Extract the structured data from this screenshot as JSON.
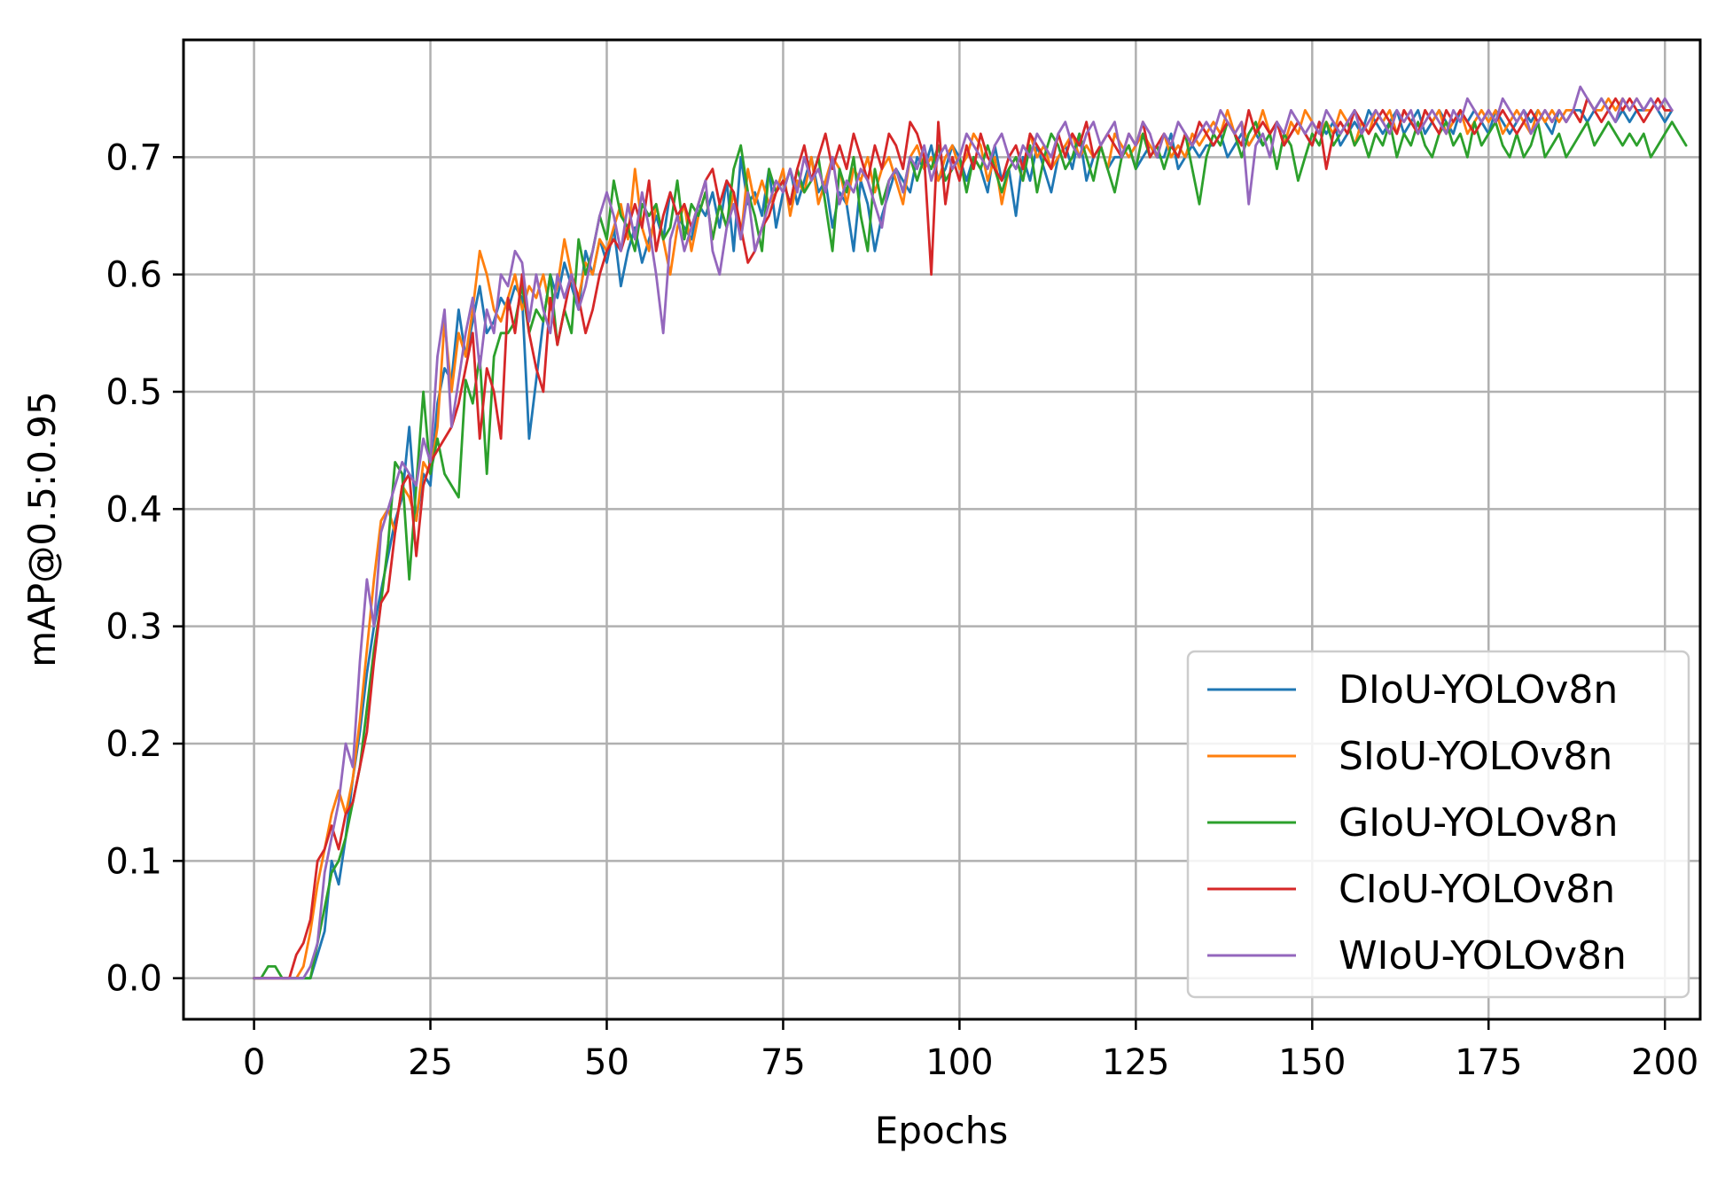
{
  "chart_data": {
    "type": "line",
    "title": "",
    "xlabel": "Epochs",
    "ylabel": "mAP@0.5:0.95",
    "xlim": [
      -10,
      205
    ],
    "ylim": [
      -0.035,
      0.8
    ],
    "xticks": [
      0,
      25,
      50,
      75,
      100,
      125,
      150,
      175,
      200
    ],
    "yticks": [
      0.0,
      0.1,
      0.2,
      0.3,
      0.4,
      0.5,
      0.6,
      0.7
    ],
    "ytick_labels": [
      "0.0",
      "0.1",
      "0.2",
      "0.3",
      "0.4",
      "0.5",
      "0.6",
      "0.7"
    ],
    "grid": true,
    "legend": "lower-right",
    "x": {
      "start": 0,
      "end": 199,
      "step": 1
    },
    "series": [
      {
        "name": "DIoU-YOLOv8n",
        "color": "#1f77b4",
        "values": [
          0.0,
          0.0,
          0.0,
          0.0,
          0.0,
          0.0,
          0.0,
          0.0,
          0.0,
          0.02,
          0.04,
          0.1,
          0.08,
          0.12,
          0.17,
          0.21,
          0.26,
          0.3,
          0.33,
          0.36,
          0.39,
          0.41,
          0.47,
          0.39,
          0.43,
          0.42,
          0.49,
          0.52,
          0.51,
          0.57,
          0.53,
          0.56,
          0.59,
          0.55,
          0.56,
          0.58,
          0.57,
          0.59,
          0.58,
          0.46,
          0.51,
          0.56,
          0.6,
          0.58,
          0.61,
          0.59,
          0.57,
          0.62,
          0.6,
          0.63,
          0.61,
          0.64,
          0.59,
          0.62,
          0.64,
          0.61,
          0.63,
          0.65,
          0.63,
          0.67,
          0.65,
          0.64,
          0.63,
          0.66,
          0.65,
          0.67,
          0.64,
          0.68,
          0.62,
          0.7,
          0.66,
          0.67,
          0.65,
          0.69,
          0.64,
          0.67,
          0.69,
          0.66,
          0.68,
          0.7,
          0.67,
          0.68,
          0.64,
          0.67,
          0.66,
          0.62,
          0.68,
          0.66,
          0.62,
          0.65,
          0.67,
          0.69,
          0.68,
          0.67,
          0.7,
          0.69,
          0.71,
          0.68,
          0.69,
          0.71,
          0.7,
          0.68,
          0.7,
          0.69,
          0.67,
          0.71,
          0.68,
          0.69,
          0.65,
          0.7,
          0.68,
          0.71,
          0.69,
          0.67,
          0.7,
          0.71,
          0.69,
          0.72,
          0.68,
          0.7,
          0.71,
          0.69,
          0.7,
          0.7,
          0.71,
          0.69,
          0.7,
          0.71,
          0.7,
          0.7,
          0.72,
          0.69,
          0.7,
          0.71,
          0.7,
          0.71,
          0.71,
          0.72,
          0.7,
          0.71,
          0.72,
          0.71,
          0.72,
          0.71,
          0.72,
          0.73,
          0.71,
          0.72,
          0.73,
          0.72,
          0.71,
          0.73,
          0.72,
          0.73,
          0.71,
          0.72,
          0.73,
          0.72,
          0.74,
          0.73,
          0.72,
          0.73,
          0.74,
          0.72,
          0.73,
          0.74,
          0.72,
          0.73,
          0.74,
          0.73,
          0.72,
          0.74,
          0.73,
          0.74,
          0.73,
          0.72,
          0.74,
          0.73,
          0.72,
          0.73,
          0.74,
          0.73,
          0.74,
          0.73,
          0.72,
          0.74,
          0.73,
          0.74,
          0.74,
          0.73,
          0.74,
          0.75,
          0.74,
          0.73,
          0.74,
          0.73,
          0.74,
          0.74,
          0.75,
          0.74,
          0.73,
          0.74
        ]
      },
      {
        "name": "SIoU-YOLOv8n",
        "color": "#ff7f0e",
        "values": [
          0.0,
          0.0,
          0.0,
          0.0,
          0.0,
          0.0,
          0.0,
          0.01,
          0.04,
          0.08,
          0.11,
          0.14,
          0.16,
          0.14,
          0.17,
          0.22,
          0.28,
          0.34,
          0.39,
          0.4,
          0.38,
          0.42,
          0.41,
          0.39,
          0.44,
          0.43,
          0.47,
          0.56,
          0.5,
          0.55,
          0.53,
          0.57,
          0.62,
          0.6,
          0.57,
          0.56,
          0.58,
          0.6,
          0.57,
          0.59,
          0.58,
          0.6,
          0.57,
          0.59,
          0.63,
          0.6,
          0.58,
          0.61,
          0.6,
          0.63,
          0.62,
          0.64,
          0.66,
          0.63,
          0.69,
          0.64,
          0.62,
          0.66,
          0.63,
          0.6,
          0.64,
          0.66,
          0.62,
          0.65,
          0.67,
          0.63,
          0.66,
          0.64,
          0.67,
          0.63,
          0.69,
          0.66,
          0.68,
          0.66,
          0.67,
          0.69,
          0.65,
          0.68,
          0.67,
          0.7,
          0.66,
          0.68,
          0.7,
          0.69,
          0.66,
          0.69,
          0.68,
          0.7,
          0.67,
          0.69,
          0.7,
          0.68,
          0.66,
          0.7,
          0.71,
          0.69,
          0.7,
          0.68,
          0.7,
          0.71,
          0.69,
          0.7,
          0.72,
          0.71,
          0.68,
          0.7,
          0.66,
          0.69,
          0.7,
          0.68,
          0.72,
          0.7,
          0.71,
          0.69,
          0.7,
          0.71,
          0.72,
          0.7,
          0.71,
          0.7,
          0.71,
          0.69,
          0.72,
          0.71,
          0.7,
          0.71,
          0.72,
          0.71,
          0.7,
          0.72,
          0.7,
          0.71,
          0.7,
          0.72,
          0.71,
          0.72,
          0.73,
          0.72,
          0.74,
          0.72,
          0.73,
          0.71,
          0.72,
          0.74,
          0.72,
          0.73,
          0.71,
          0.73,
          0.72,
          0.74,
          0.73,
          0.72,
          0.73,
          0.72,
          0.74,
          0.73,
          0.71,
          0.73,
          0.72,
          0.74,
          0.73,
          0.74,
          0.72,
          0.74,
          0.73,
          0.72,
          0.74,
          0.73,
          0.74,
          0.72,
          0.73,
          0.74,
          0.72,
          0.73,
          0.74,
          0.73,
          0.74,
          0.72,
          0.73,
          0.74,
          0.73,
          0.72,
          0.74,
          0.73,
          0.74,
          0.73,
          0.74,
          0.74,
          0.73,
          0.75,
          0.74,
          0.74,
          0.75,
          0.74,
          0.75,
          0.74,
          0.75,
          0.74,
          0.74,
          0.75,
          0.74,
          0.74
        ]
      },
      {
        "name": "GIoU-YOLOv8n",
        "color": "#2ca02c",
        "values": [
          0.0,
          0.0,
          0.01,
          0.01,
          0.0,
          0.0,
          0.0,
          0.0,
          0.0,
          0.03,
          0.06,
          0.09,
          0.1,
          0.12,
          0.15,
          0.18,
          0.23,
          0.28,
          0.32,
          0.37,
          0.44,
          0.43,
          0.34,
          0.42,
          0.5,
          0.43,
          0.46,
          0.43,
          0.42,
          0.41,
          0.51,
          0.49,
          0.53,
          0.43,
          0.53,
          0.55,
          0.55,
          0.56,
          0.59,
          0.55,
          0.57,
          0.56,
          0.6,
          0.54,
          0.57,
          0.55,
          0.63,
          0.6,
          0.62,
          0.65,
          0.63,
          0.68,
          0.65,
          0.64,
          0.62,
          0.66,
          0.65,
          0.66,
          0.63,
          0.64,
          0.68,
          0.63,
          0.66,
          0.65,
          0.67,
          0.63,
          0.66,
          0.64,
          0.69,
          0.71,
          0.67,
          0.65,
          0.62,
          0.69,
          0.67,
          0.68,
          0.66,
          0.69,
          0.67,
          0.68,
          0.7,
          0.66,
          0.62,
          0.69,
          0.67,
          0.7,
          0.65,
          0.62,
          0.69,
          0.66,
          0.68,
          0.69,
          0.67,
          0.7,
          0.68,
          0.7,
          0.69,
          0.71,
          0.68,
          0.69,
          0.7,
          0.67,
          0.7,
          0.69,
          0.71,
          0.69,
          0.67,
          0.69,
          0.7,
          0.68,
          0.71,
          0.67,
          0.7,
          0.72,
          0.71,
          0.69,
          0.7,
          0.72,
          0.7,
          0.68,
          0.71,
          0.69,
          0.67,
          0.7,
          0.71,
          0.69,
          0.72,
          0.7,
          0.71,
          0.69,
          0.71,
          0.7,
          0.72,
          0.69,
          0.66,
          0.7,
          0.72,
          0.71,
          0.73,
          0.72,
          0.7,
          0.72,
          0.73,
          0.71,
          0.72,
          0.69,
          0.72,
          0.71,
          0.68,
          0.7,
          0.72,
          0.71,
          0.73,
          0.71,
          0.72,
          0.73,
          0.71,
          0.72,
          0.7,
          0.72,
          0.71,
          0.73,
          0.7,
          0.72,
          0.71,
          0.73,
          0.71,
          0.7,
          0.72,
          0.73,
          0.71,
          0.72,
          0.7,
          0.73,
          0.71,
          0.72,
          0.73,
          0.71,
          0.7,
          0.72,
          0.7,
          0.71,
          0.73,
          0.7,
          0.71,
          0.72,
          0.7,
          0.71,
          0.72,
          0.73,
          0.71,
          0.72,
          0.73,
          0.72,
          0.71,
          0.72,
          0.71,
          0.72,
          0.7,
          0.71,
          0.72,
          0.73,
          0.72,
          0.71
        ]
      },
      {
        "name": "CIoU-YOLOv8n",
        "color": "#d62728",
        "values": [
          0.0,
          0.0,
          0.0,
          0.0,
          0.0,
          0.0,
          0.02,
          0.03,
          0.05,
          0.1,
          0.11,
          0.13,
          0.11,
          0.14,
          0.15,
          0.18,
          0.21,
          0.27,
          0.32,
          0.33,
          0.38,
          0.42,
          0.43,
          0.36,
          0.42,
          0.44,
          0.45,
          0.46,
          0.47,
          0.49,
          0.52,
          0.55,
          0.46,
          0.52,
          0.5,
          0.46,
          0.58,
          0.55,
          0.6,
          0.55,
          0.52,
          0.5,
          0.58,
          0.54,
          0.57,
          0.6,
          0.58,
          0.55,
          0.57,
          0.6,
          0.62,
          0.63,
          0.62,
          0.64,
          0.66,
          0.64,
          0.68,
          0.62,
          0.65,
          0.67,
          0.65,
          0.66,
          0.64,
          0.66,
          0.68,
          0.69,
          0.66,
          0.68,
          0.67,
          0.64,
          0.61,
          0.62,
          0.64,
          0.65,
          0.67,
          0.68,
          0.66,
          0.69,
          0.71,
          0.68,
          0.7,
          0.72,
          0.69,
          0.71,
          0.69,
          0.72,
          0.7,
          0.68,
          0.71,
          0.69,
          0.72,
          0.71,
          0.69,
          0.73,
          0.72,
          0.7,
          0.6,
          0.73,
          0.66,
          0.7,
          0.68,
          0.71,
          0.69,
          0.72,
          0.7,
          0.69,
          0.68,
          0.7,
          0.71,
          0.69,
          0.72,
          0.71,
          0.7,
          0.69,
          0.72,
          0.7,
          0.72,
          0.71,
          0.73,
          0.7,
          0.71,
          0.72,
          0.71,
          0.7,
          0.72,
          0.71,
          0.73,
          0.7,
          0.71,
          0.72,
          0.71,
          0.7,
          0.72,
          0.71,
          0.73,
          0.72,
          0.71,
          0.72,
          0.73,
          0.72,
          0.71,
          0.74,
          0.72,
          0.73,
          0.72,
          0.73,
          0.71,
          0.72,
          0.73,
          0.72,
          0.71,
          0.73,
          0.69,
          0.72,
          0.73,
          0.72,
          0.74,
          0.73,
          0.72,
          0.73,
          0.74,
          0.73,
          0.72,
          0.74,
          0.73,
          0.72,
          0.74,
          0.73,
          0.72,
          0.74,
          0.73,
          0.74,
          0.73,
          0.72,
          0.73,
          0.74,
          0.73,
          0.74,
          0.73,
          0.72,
          0.73,
          0.74,
          0.73,
          0.74,
          0.73,
          0.74,
          0.73,
          0.74,
          0.73,
          0.75,
          0.74,
          0.73,
          0.74,
          0.75,
          0.74,
          0.75,
          0.74,
          0.73,
          0.74,
          0.75,
          0.74,
          0.74
        ]
      },
      {
        "name": "WIoU-YOLOv8n",
        "color": "#9467bd",
        "values": [
          0.0,
          0.0,
          0.0,
          0.0,
          0.0,
          0.0,
          0.0,
          0.0,
          0.01,
          0.03,
          0.09,
          0.12,
          0.15,
          0.2,
          0.18,
          0.27,
          0.34,
          0.3,
          0.38,
          0.4,
          0.42,
          0.44,
          0.43,
          0.42,
          0.46,
          0.44,
          0.53,
          0.57,
          0.47,
          0.51,
          0.55,
          0.58,
          0.52,
          0.57,
          0.55,
          0.6,
          0.59,
          0.62,
          0.61,
          0.56,
          0.6,
          0.57,
          0.55,
          0.6,
          0.58,
          0.6,
          0.57,
          0.59,
          0.62,
          0.65,
          0.67,
          0.65,
          0.62,
          0.66,
          0.63,
          0.67,
          0.64,
          0.6,
          0.55,
          0.63,
          0.65,
          0.62,
          0.64,
          0.66,
          0.68,
          0.62,
          0.6,
          0.64,
          0.66,
          0.63,
          0.67,
          0.62,
          0.64,
          0.66,
          0.68,
          0.67,
          0.69,
          0.67,
          0.7,
          0.68,
          0.69,
          0.67,
          0.7,
          0.66,
          0.68,
          0.67,
          0.69,
          0.68,
          0.66,
          0.64,
          0.68,
          0.69,
          0.67,
          0.7,
          0.69,
          0.71,
          0.68,
          0.7,
          0.71,
          0.69,
          0.7,
          0.72,
          0.71,
          0.7,
          0.69,
          0.71,
          0.72,
          0.7,
          0.69,
          0.71,
          0.7,
          0.72,
          0.71,
          0.7,
          0.72,
          0.73,
          0.71,
          0.7,
          0.72,
          0.73,
          0.71,
          0.72,
          0.73,
          0.7,
          0.72,
          0.71,
          0.73,
          0.72,
          0.7,
          0.72,
          0.71,
          0.73,
          0.72,
          0.71,
          0.72,
          0.73,
          0.72,
          0.74,
          0.73,
          0.72,
          0.73,
          0.66,
          0.71,
          0.72,
          0.7,
          0.73,
          0.72,
          0.74,
          0.73,
          0.72,
          0.73,
          0.72,
          0.74,
          0.73,
          0.72,
          0.73,
          0.74,
          0.72,
          0.73,
          0.74,
          0.73,
          0.72,
          0.74,
          0.73,
          0.74,
          0.72,
          0.73,
          0.74,
          0.73,
          0.72,
          0.74,
          0.73,
          0.75,
          0.74,
          0.73,
          0.74,
          0.73,
          0.75,
          0.74,
          0.73,
          0.74,
          0.72,
          0.73,
          0.74,
          0.73,
          0.74,
          0.73,
          0.74,
          0.76,
          0.75,
          0.74,
          0.75,
          0.74,
          0.73,
          0.75,
          0.74,
          0.75,
          0.74,
          0.75,
          0.74,
          0.75,
          0.74
        ]
      }
    ]
  }
}
